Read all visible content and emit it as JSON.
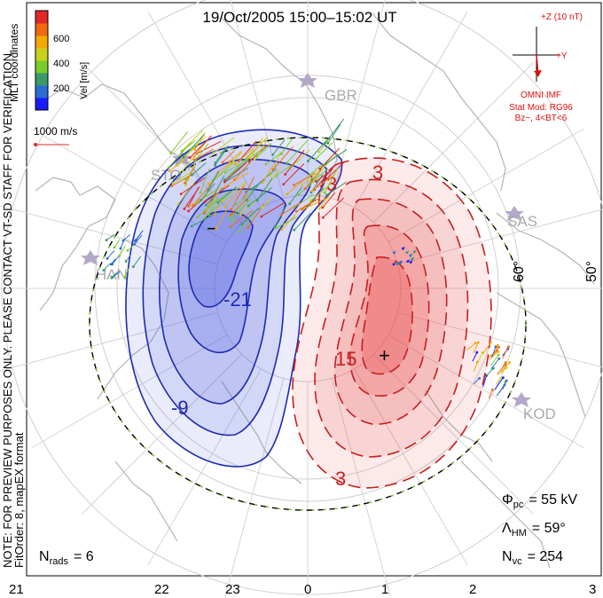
{
  "title": "19/Oct/2005 15:00–15:02 UT",
  "side_note_1": "NOTE: FOR PREVIEW PURPOSES ONLY. PLEASE CONTACT VT-SD STAFF FOR VERIFICATION.",
  "side_note_2": "FitOrder: 8, mapEX format",
  "colorbar": {
    "title": "Vel [m/s]",
    "coord": "MLT coordinates",
    "ticks": [
      "200",
      "400",
      "600"
    ],
    "colors": [
      "#1a1aff",
      "#2a6cd4",
      "#3a9a6a",
      "#7acc2a",
      "#c8d21e",
      "#f5a800",
      "#f26a10",
      "#e02828"
    ]
  },
  "vector_scale": "1000 m/s",
  "imf": {
    "z_label": "+Z (10 nT)",
    "y_label": "+Y",
    "source": "OMNI IMF",
    "model": "Stat Mod: RG96",
    "cond": "Bz−, 4<BT<6"
  },
  "radars": [
    "GBR",
    "STO",
    "HAN",
    "SAS",
    "KOD"
  ],
  "lat_labels": [
    "60°",
    "50°"
  ],
  "contours": {
    "neg": [
      "-21",
      "-9",
      "−"
    ],
    "pos": [
      "15",
      "3",
      "3",
      "3"
    ]
  },
  "stats": {
    "phi_sym": "Φ",
    "phi_sub": "pc",
    "phi_val": "= 55 kV",
    "lambda_sym": "Λ",
    "lambda_sub": "HM",
    "lambda_val": "= 59°",
    "nvc_sym": "N",
    "nvc_sub": "vc",
    "nvc_val": "= 254",
    "nrads_sym": "N",
    "nrads_sub": "rads",
    "nrads_val": "= 6"
  },
  "mlt_ticks": [
    "21",
    "22",
    "23",
    "0",
    "1",
    "2",
    "3"
  ],
  "colors": {
    "neg_line": "#1e2ab4",
    "pos_line": "#c81e1e",
    "neg_fill": "#5060e0",
    "pos_fill": "#e85050",
    "imf_red": "#e01010",
    "map_line": "#b4b4b4",
    "radar_label": "#aaaaaa"
  }
}
